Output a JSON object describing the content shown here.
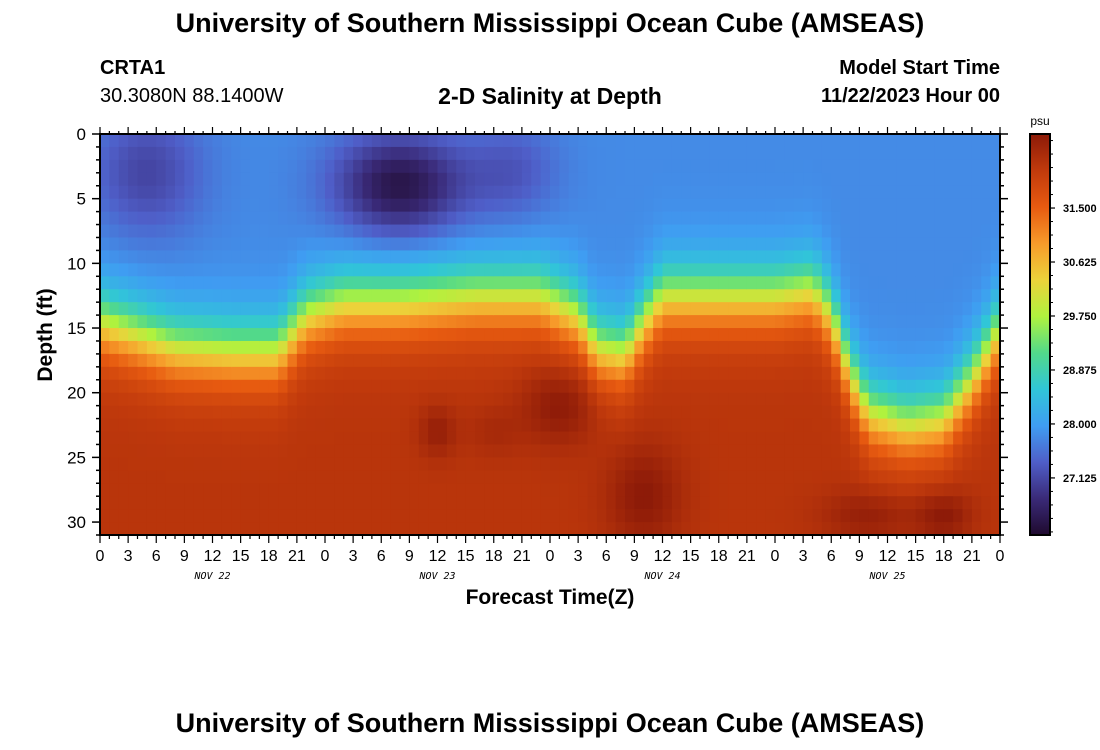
{
  "header": {
    "title": "University of Southern Mississippi Ocean Cube (AMSEAS)",
    "station_id": "CRTA1",
    "station_coords": "30.3080N  88.1400W",
    "subtitle": "2-D Salinity at Depth",
    "model_label": "Model Start Time",
    "model_time": "11/22/2023 Hour 00"
  },
  "footer": {
    "title": "University of Southern Mississippi Ocean Cube (AMSEAS)"
  },
  "chart_data": {
    "type": "heatmap",
    "title": "2-D Salinity at Depth",
    "xlabel": "Forecast Time(Z)",
    "ylabel": "Depth (ft)",
    "x_range_hours": [
      0,
      96
    ],
    "y_range_ft": [
      0,
      31
    ],
    "x_tick_labels": [
      "0",
      "3",
      "6",
      "9",
      "12",
      "15",
      "18",
      "21",
      "0",
      "3",
      "6",
      "9",
      "12",
      "15",
      "18",
      "21",
      "0",
      "3",
      "6",
      "9",
      "12",
      "15",
      "18",
      "21",
      "0",
      "3",
      "6",
      "9",
      "12",
      "15",
      "18",
      "21",
      "0"
    ],
    "y_ticks": [
      0,
      5,
      10,
      15,
      20,
      25,
      30
    ],
    "day_labels": [
      {
        "hour": 12,
        "label": "NOV 22"
      },
      {
        "hour": 36,
        "label": "NOV 23"
      },
      {
        "hour": 60,
        "label": "NOV 24"
      },
      {
        "hour": 84,
        "label": "NOV 25"
      }
    ],
    "colorbar": {
      "unit": "psu",
      "range": [
        26.2,
        32.7
      ],
      "labeled_ticks": [
        "31.500",
        "30.625",
        "29.750",
        "28.875",
        "28.000",
        "27.125"
      ],
      "labeled_values": [
        31.5,
        30.625,
        29.75,
        28.875,
        28.0,
        27.125
      ],
      "colors": [
        "#1f0a2e",
        "#3a2a78",
        "#4f5ec8",
        "#3f9df2",
        "#30c6d8",
        "#52d98a",
        "#b0f23e",
        "#ecd23a",
        "#f79a2a",
        "#e75a10",
        "#c13a0c",
        "#8c1a08"
      ]
    },
    "halocline_depth_ft": [
      {
        "hour": 0,
        "depth": 14.5
      },
      {
        "hour": 4,
        "depth": 15.5
      },
      {
        "hour": 8,
        "depth": 16.5
      },
      {
        "hour": 14,
        "depth": 16.8
      },
      {
        "hour": 19,
        "depth": 16.8
      },
      {
        "hour": 22,
        "depth": 14.0
      },
      {
        "hour": 26,
        "depth": 13.0
      },
      {
        "hour": 32,
        "depth": 13.0
      },
      {
        "hour": 40,
        "depth": 12.5
      },
      {
        "hour": 47,
        "depth": 12.5
      },
      {
        "hour": 51,
        "depth": 14.0
      },
      {
        "hour": 53,
        "depth": 16.5
      },
      {
        "hour": 56,
        "depth": 17.0
      },
      {
        "hour": 58,
        "depth": 14.5
      },
      {
        "hour": 60,
        "depth": 12.5
      },
      {
        "hour": 66,
        "depth": 12.5
      },
      {
        "hour": 72,
        "depth": 12.5
      },
      {
        "hour": 76,
        "depth": 12.0
      },
      {
        "hour": 78,
        "depth": 14.0
      },
      {
        "hour": 80,
        "depth": 18.5
      },
      {
        "hour": 82,
        "depth": 21.5
      },
      {
        "hour": 86,
        "depth": 22.5
      },
      {
        "hour": 90,
        "depth": 22.0
      },
      {
        "hour": 93,
        "depth": 19.0
      },
      {
        "hour": 96,
        "depth": 15.0
      }
    ],
    "fresh_core_centers": [
      {
        "hour": 5,
        "depth": 3,
        "psu": 27.1,
        "sx": 6,
        "sy": 5
      },
      {
        "hour": 32,
        "depth": 4,
        "psu": 26.4,
        "sx": 7,
        "sy": 4
      },
      {
        "hour": 44,
        "depth": 3,
        "psu": 27.3,
        "sx": 5,
        "sy": 4
      }
    ],
    "salty_core_centers": [
      {
        "hour": 36,
        "depth": 23,
        "psu": 32.6,
        "sx": 2,
        "sy": 2
      },
      {
        "hour": 42,
        "depth": 23,
        "psu": 32.4,
        "sx": 3,
        "sy": 2
      },
      {
        "hour": 49,
        "depth": 21,
        "psu": 32.7,
        "sx": 4,
        "sy": 3
      },
      {
        "hour": 58,
        "depth": 28,
        "psu": 32.7,
        "sx": 4,
        "sy": 4
      },
      {
        "hour": 82,
        "depth": 29.5,
        "psu": 32.6,
        "sx": 5,
        "sy": 2
      },
      {
        "hour": 90,
        "depth": 29.5,
        "psu": 32.7,
        "sx": 3,
        "sy": 2
      }
    ]
  }
}
